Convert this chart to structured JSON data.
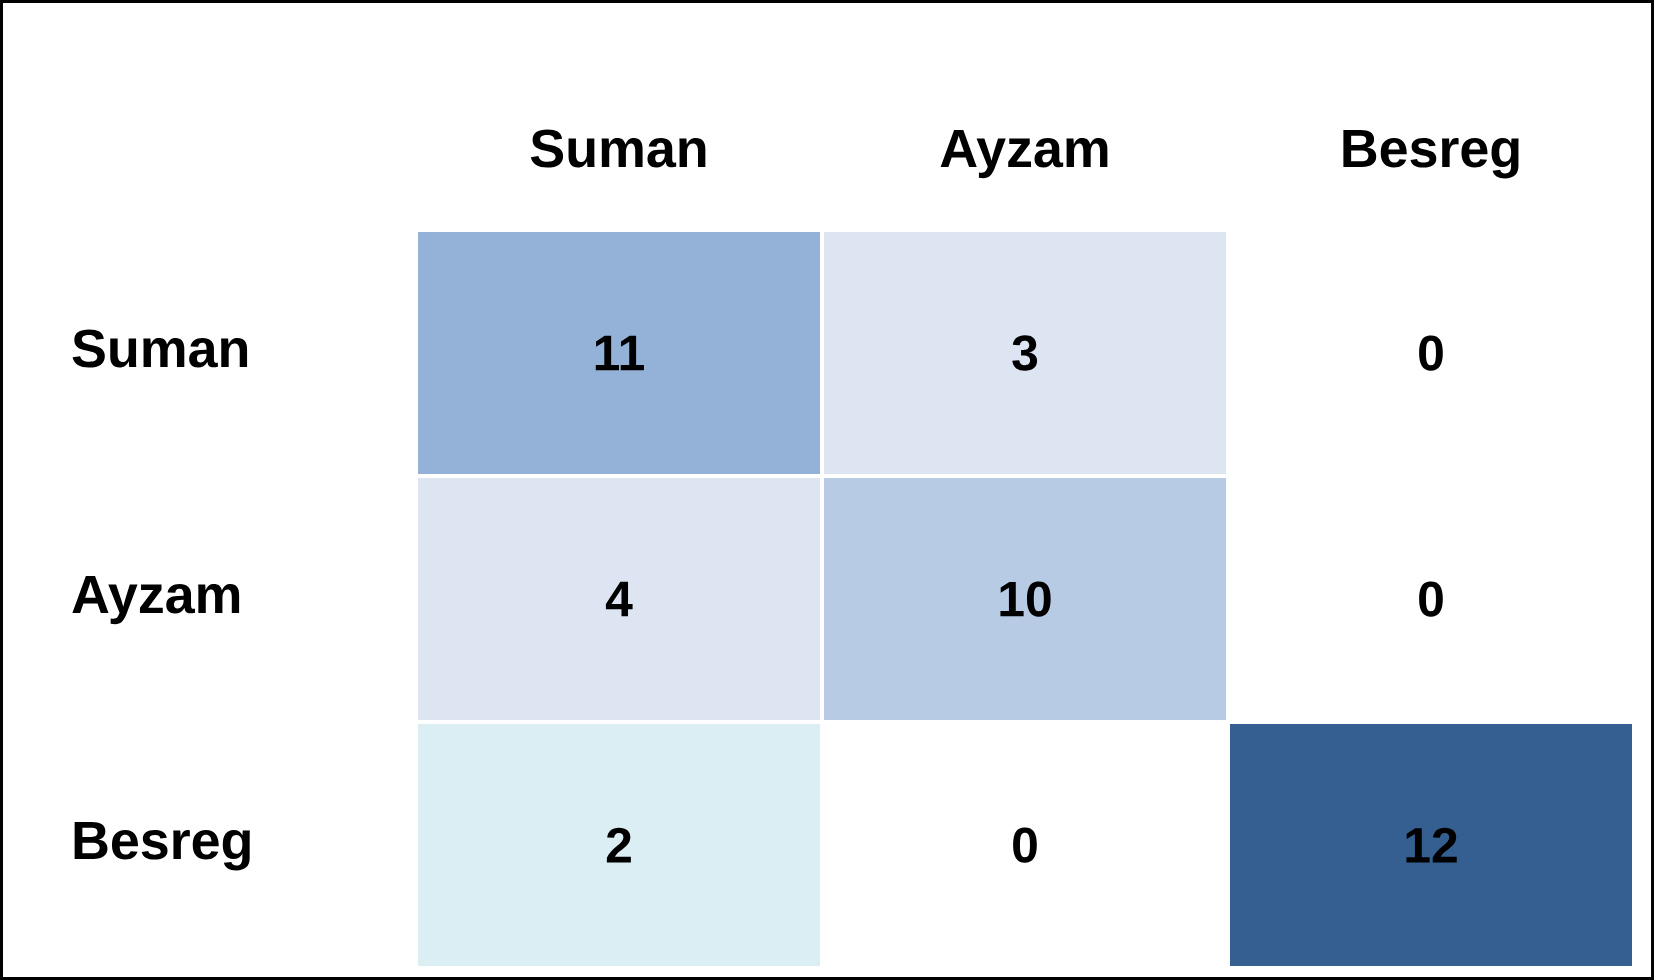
{
  "chart_data": {
    "type": "heatmap",
    "categories": [
      "Suman",
      "Ayzam",
      "Besreg"
    ],
    "y_categories": [
      "Suman",
      "Ayzam",
      "Besreg"
    ],
    "cells": [
      [
        11,
        3,
        0
      ],
      [
        4,
        10,
        0
      ],
      [
        2,
        0,
        12
      ]
    ],
    "colors": [
      [
        "#94b2d7",
        "#dce5f1",
        "#ffffff"
      ],
      [
        "#dce5f1",
        "#b8cbe4",
        "#ffffff"
      ],
      [
        "#dbeef4",
        "#ffffff",
        "#365f91"
      ]
    ],
    "data_labels": true
  }
}
